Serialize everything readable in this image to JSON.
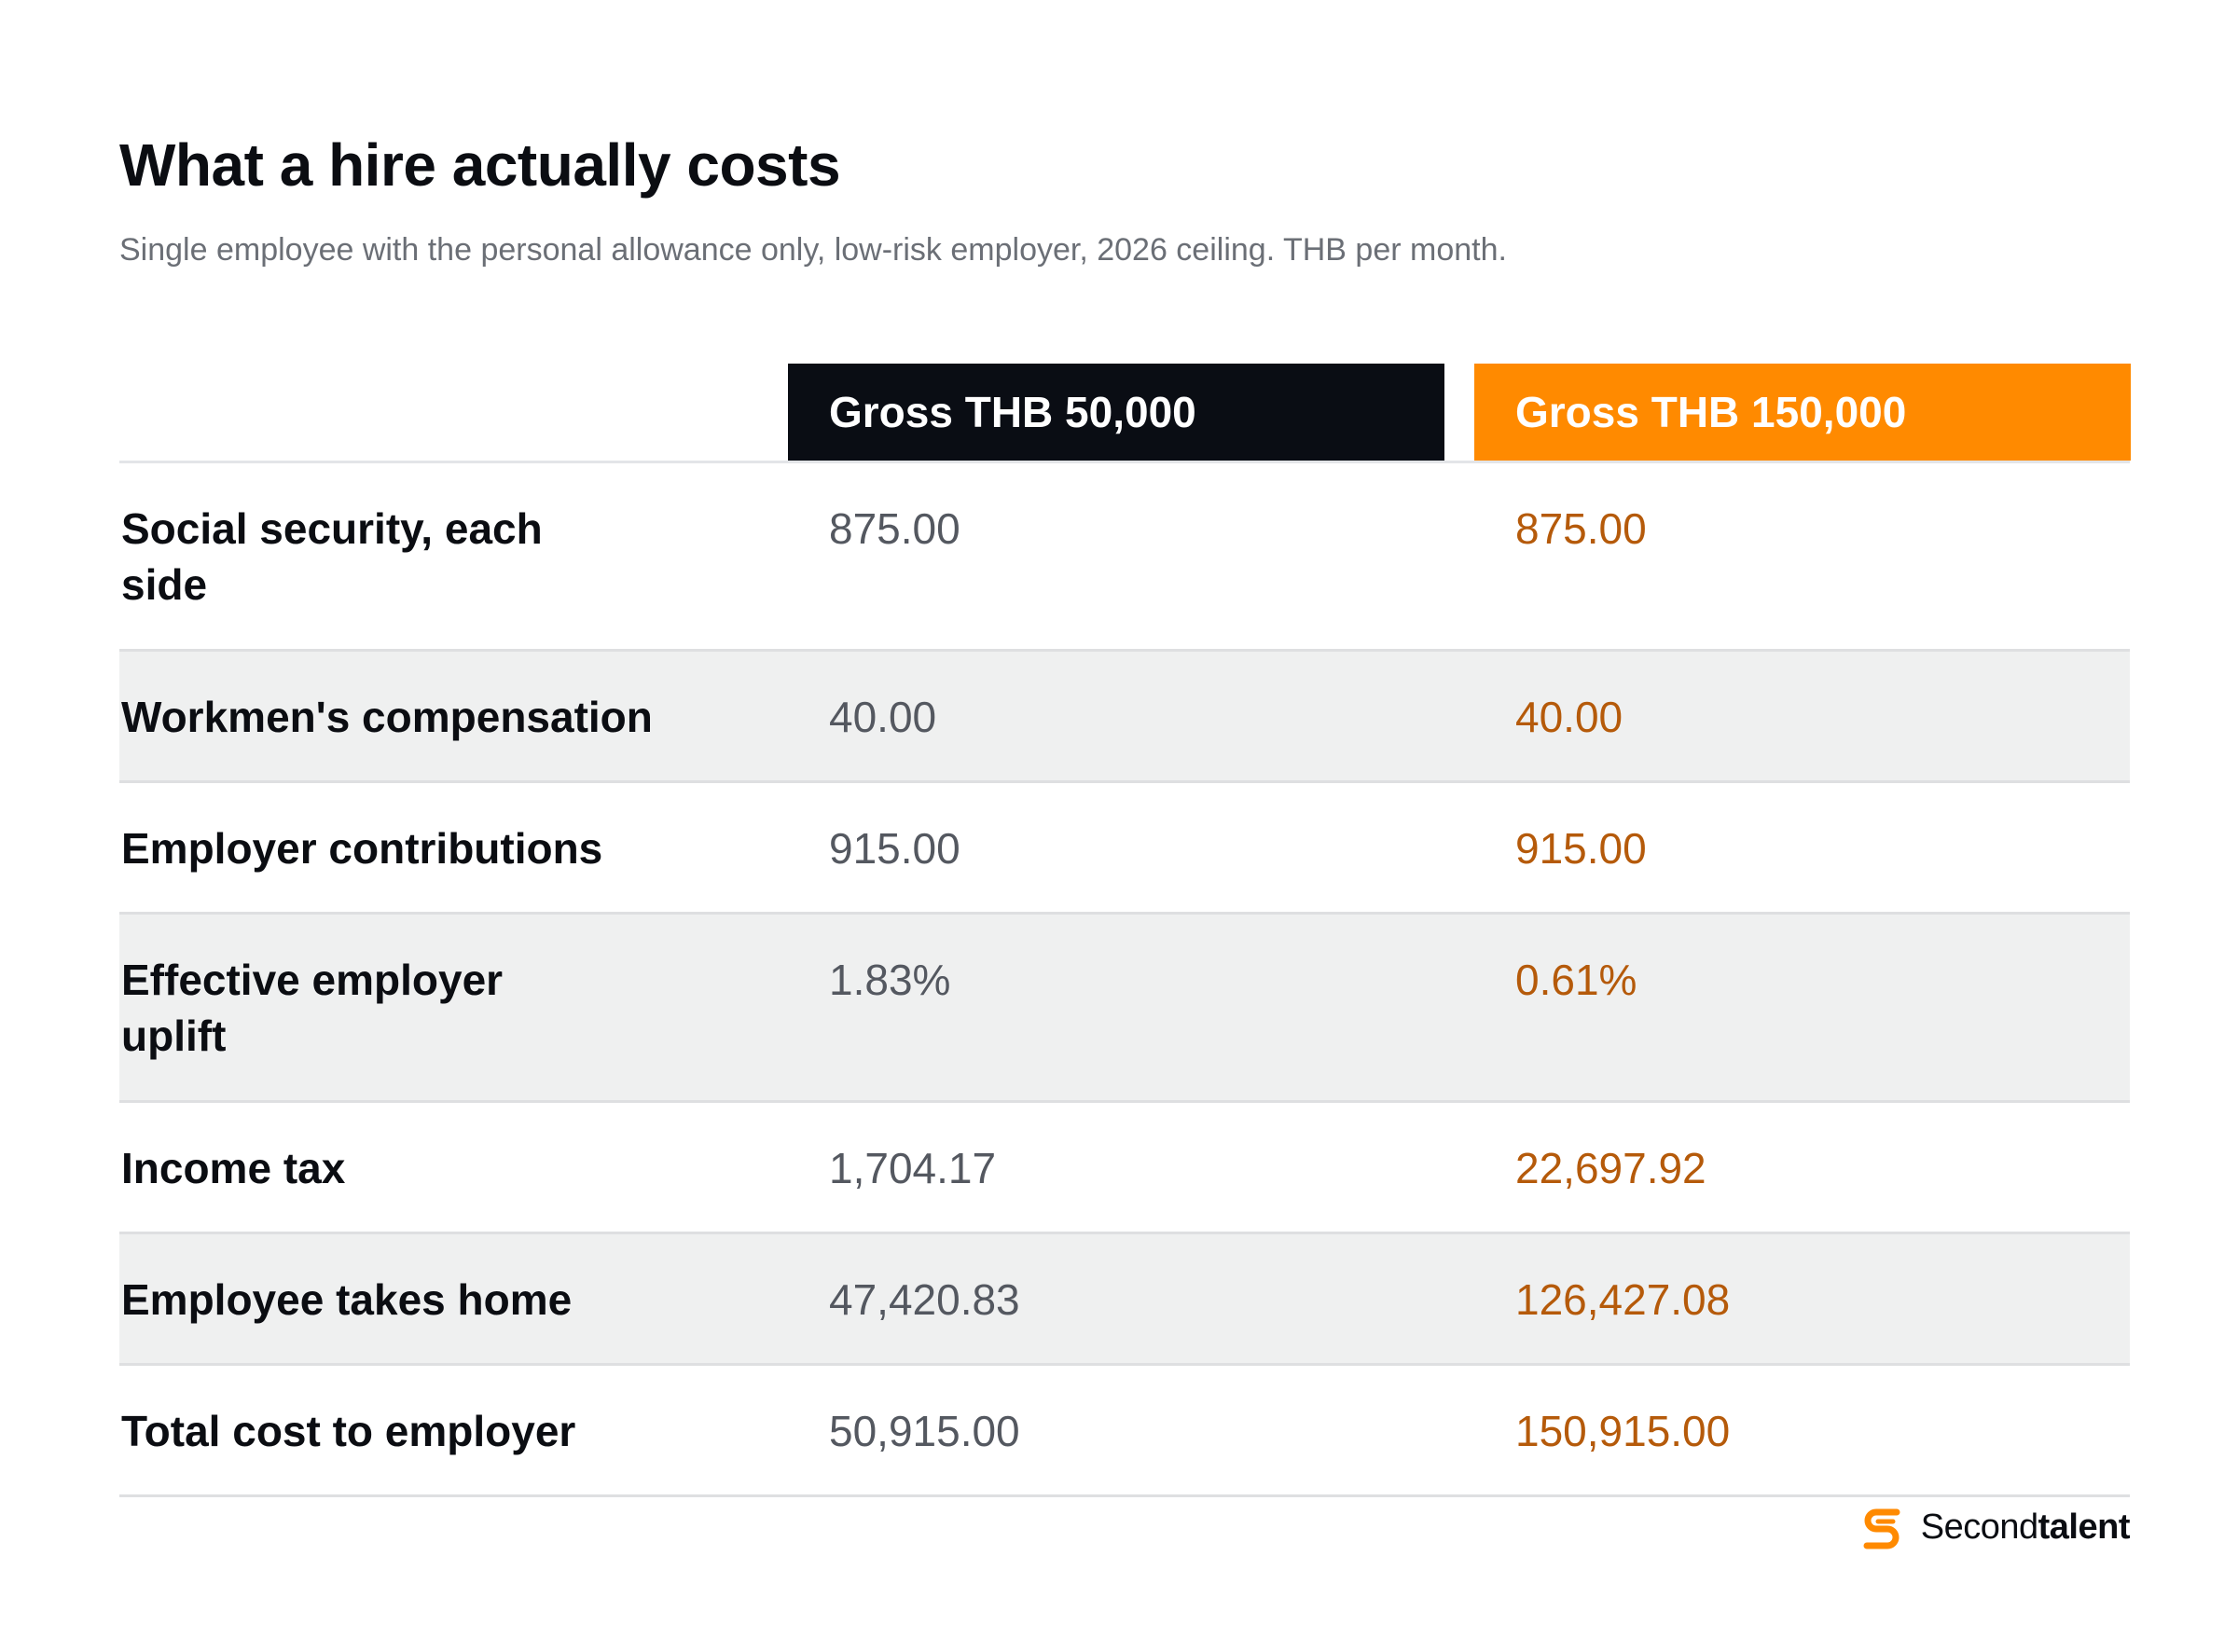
{
  "title": "What a hire actually costs",
  "subtitle": "Single employee with the personal allowance only, low-risk employer, 2026 ceiling. THB per month.",
  "colors": {
    "header_dark": "#0a0d14",
    "header_orange": "#ff8a00",
    "value_gray": "#545860",
    "value_orange": "#b55a0a",
    "row_alt": "#eff0f0"
  },
  "chart_data": {
    "type": "table",
    "title": "What a hire actually costs",
    "subtitle": "Single employee with the personal allowance only, low-risk employer, 2026 ceiling. THB per month.",
    "columns": [
      "Gross THB 50,000",
      "Gross THB 150,000"
    ],
    "rows": [
      {
        "label": "Social security, each side",
        "values": [
          "875.00",
          "875.00"
        ]
      },
      {
        "label": "Workmen's compensation",
        "values": [
          "40.00",
          "40.00"
        ]
      },
      {
        "label": "Employer contributions",
        "values": [
          "915.00",
          "915.00"
        ]
      },
      {
        "label": "Effective employer uplift",
        "values": [
          "1.83%",
          "0.61%"
        ]
      },
      {
        "label": "Income tax",
        "values": [
          "1,704.17",
          "22,697.92"
        ]
      },
      {
        "label": "Employee takes home",
        "values": [
          "47,420.83",
          "126,427.08"
        ]
      },
      {
        "label": "Total cost to employer",
        "values": [
          "50,915.00",
          "150,915.00"
        ]
      }
    ]
  },
  "brand": {
    "icon": "secondtalent-s-logo-icon",
    "name_regular": "Second",
    "name_bold": "talent"
  }
}
